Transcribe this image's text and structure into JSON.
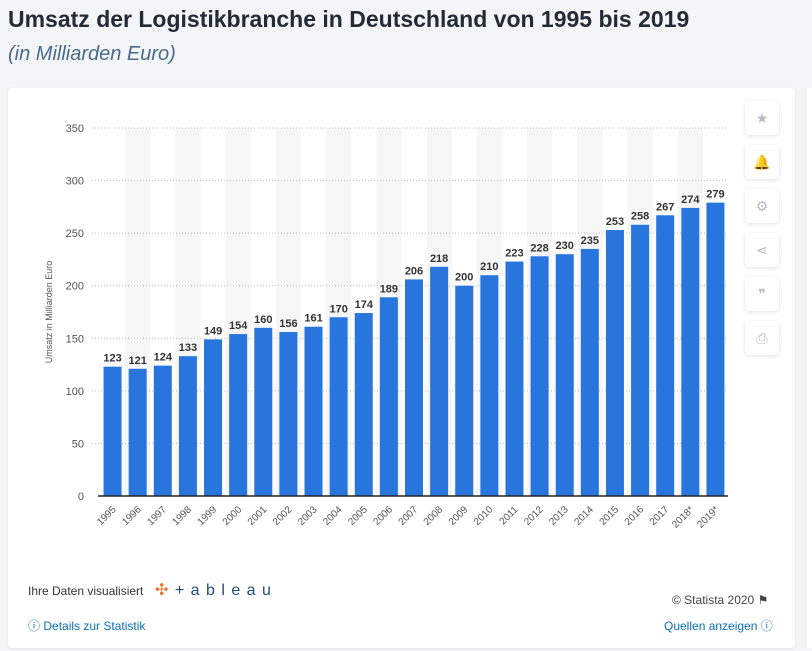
{
  "header": {
    "title": "Umsatz der Logistikbranche in Deutschland von 1995 bis 2019",
    "subtitle": "(in Milliarden Euro)"
  },
  "toolbar": [
    {
      "icon": "star-icon",
      "glyph": "★"
    },
    {
      "icon": "bell-icon",
      "glyph": "🔔"
    },
    {
      "icon": "gear-icon",
      "glyph": "⚙"
    },
    {
      "icon": "share-icon",
      "glyph": "⋖"
    },
    {
      "icon": "quote-icon",
      "glyph": "❞"
    },
    {
      "icon": "print-icon",
      "glyph": "⎙"
    }
  ],
  "footer": {
    "tableau_label": "Ihre Daten visualisiert",
    "tableau_logo": "+ a b l e a u",
    "copyright": "© Statista 2020",
    "details": "Details zur Statistik",
    "sources": "Quellen anzeigen"
  },
  "colors": {
    "bar": "#2876dd",
    "label": "#333333"
  },
  "chart_data": {
    "type": "bar",
    "title": "",
    "xlabel": "",
    "ylabel": "Umsatz in Milliarden Euro",
    "ylim": [
      0,
      350
    ],
    "yticks": [
      0,
      50,
      100,
      150,
      200,
      250,
      300,
      350
    ],
    "grid": true,
    "categories": [
      "1995",
      "1996",
      "1997",
      "1998",
      "1999",
      "2000",
      "2001",
      "2002",
      "2003",
      "2004",
      "2005",
      "2006",
      "2007",
      "2008",
      "2009",
      "2010",
      "2011",
      "2012",
      "2013",
      "2014",
      "2015",
      "2016",
      "2017",
      "2018*",
      "2019*"
    ],
    "values": [
      123,
      121,
      124,
      133,
      149,
      154,
      160,
      156,
      161,
      170,
      174,
      189,
      206,
      218,
      200,
      210,
      223,
      228,
      230,
      235,
      253,
      258,
      267,
      274,
      279
    ]
  }
}
